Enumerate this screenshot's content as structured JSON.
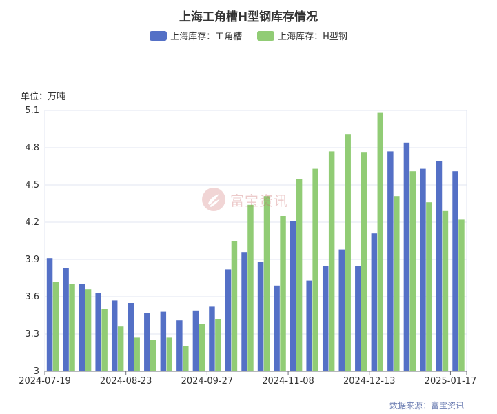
{
  "chart_data": {
    "type": "bar",
    "title": "上海工角槽H型钢库存情况",
    "unit_label": "单位：万吨",
    "source_label": "数据来源：富宝资讯",
    "watermark": "富宝资讯",
    "ylim": [
      3,
      5.1
    ],
    "y_ticks": [
      "3",
      "3.3",
      "3.6",
      "3.9",
      "4.2",
      "4.5",
      "4.8",
      "5.1"
    ],
    "x_tick_labels": [
      "2024-07-19",
      "2024-08-23",
      "2024-09-27",
      "2024-11-08",
      "2024-12-13",
      "2025-01-17"
    ],
    "x_tick_indices": [
      0,
      5,
      10,
      15,
      20,
      25
    ],
    "categories_count": 26,
    "colors": {
      "series1": "#5470c6",
      "series2": "#91cc75",
      "grid": "#e0e6f1",
      "axis": "#6e7079"
    },
    "series": [
      {
        "name": "上海库存：工角槽",
        "values": [
          3.91,
          3.83,
          3.7,
          3.63,
          3.57,
          3.55,
          3.47,
          3.48,
          3.41,
          3.49,
          3.52,
          3.82,
          3.96,
          3.88,
          3.69,
          4.21,
          3.73,
          3.85,
          3.98,
          3.85,
          4.11,
          4.77,
          4.84,
          4.63,
          4.69,
          4.61
        ]
      },
      {
        "name": "上海库存：H型钢",
        "values": [
          3.72,
          3.7,
          3.66,
          3.5,
          3.36,
          3.27,
          3.25,
          3.27,
          3.2,
          3.38,
          3.42,
          4.05,
          4.34,
          4.41,
          4.25,
          4.55,
          4.63,
          4.77,
          4.91,
          4.76,
          5.08,
          4.41,
          4.61,
          4.36,
          4.29,
          4.22
        ]
      }
    ]
  }
}
